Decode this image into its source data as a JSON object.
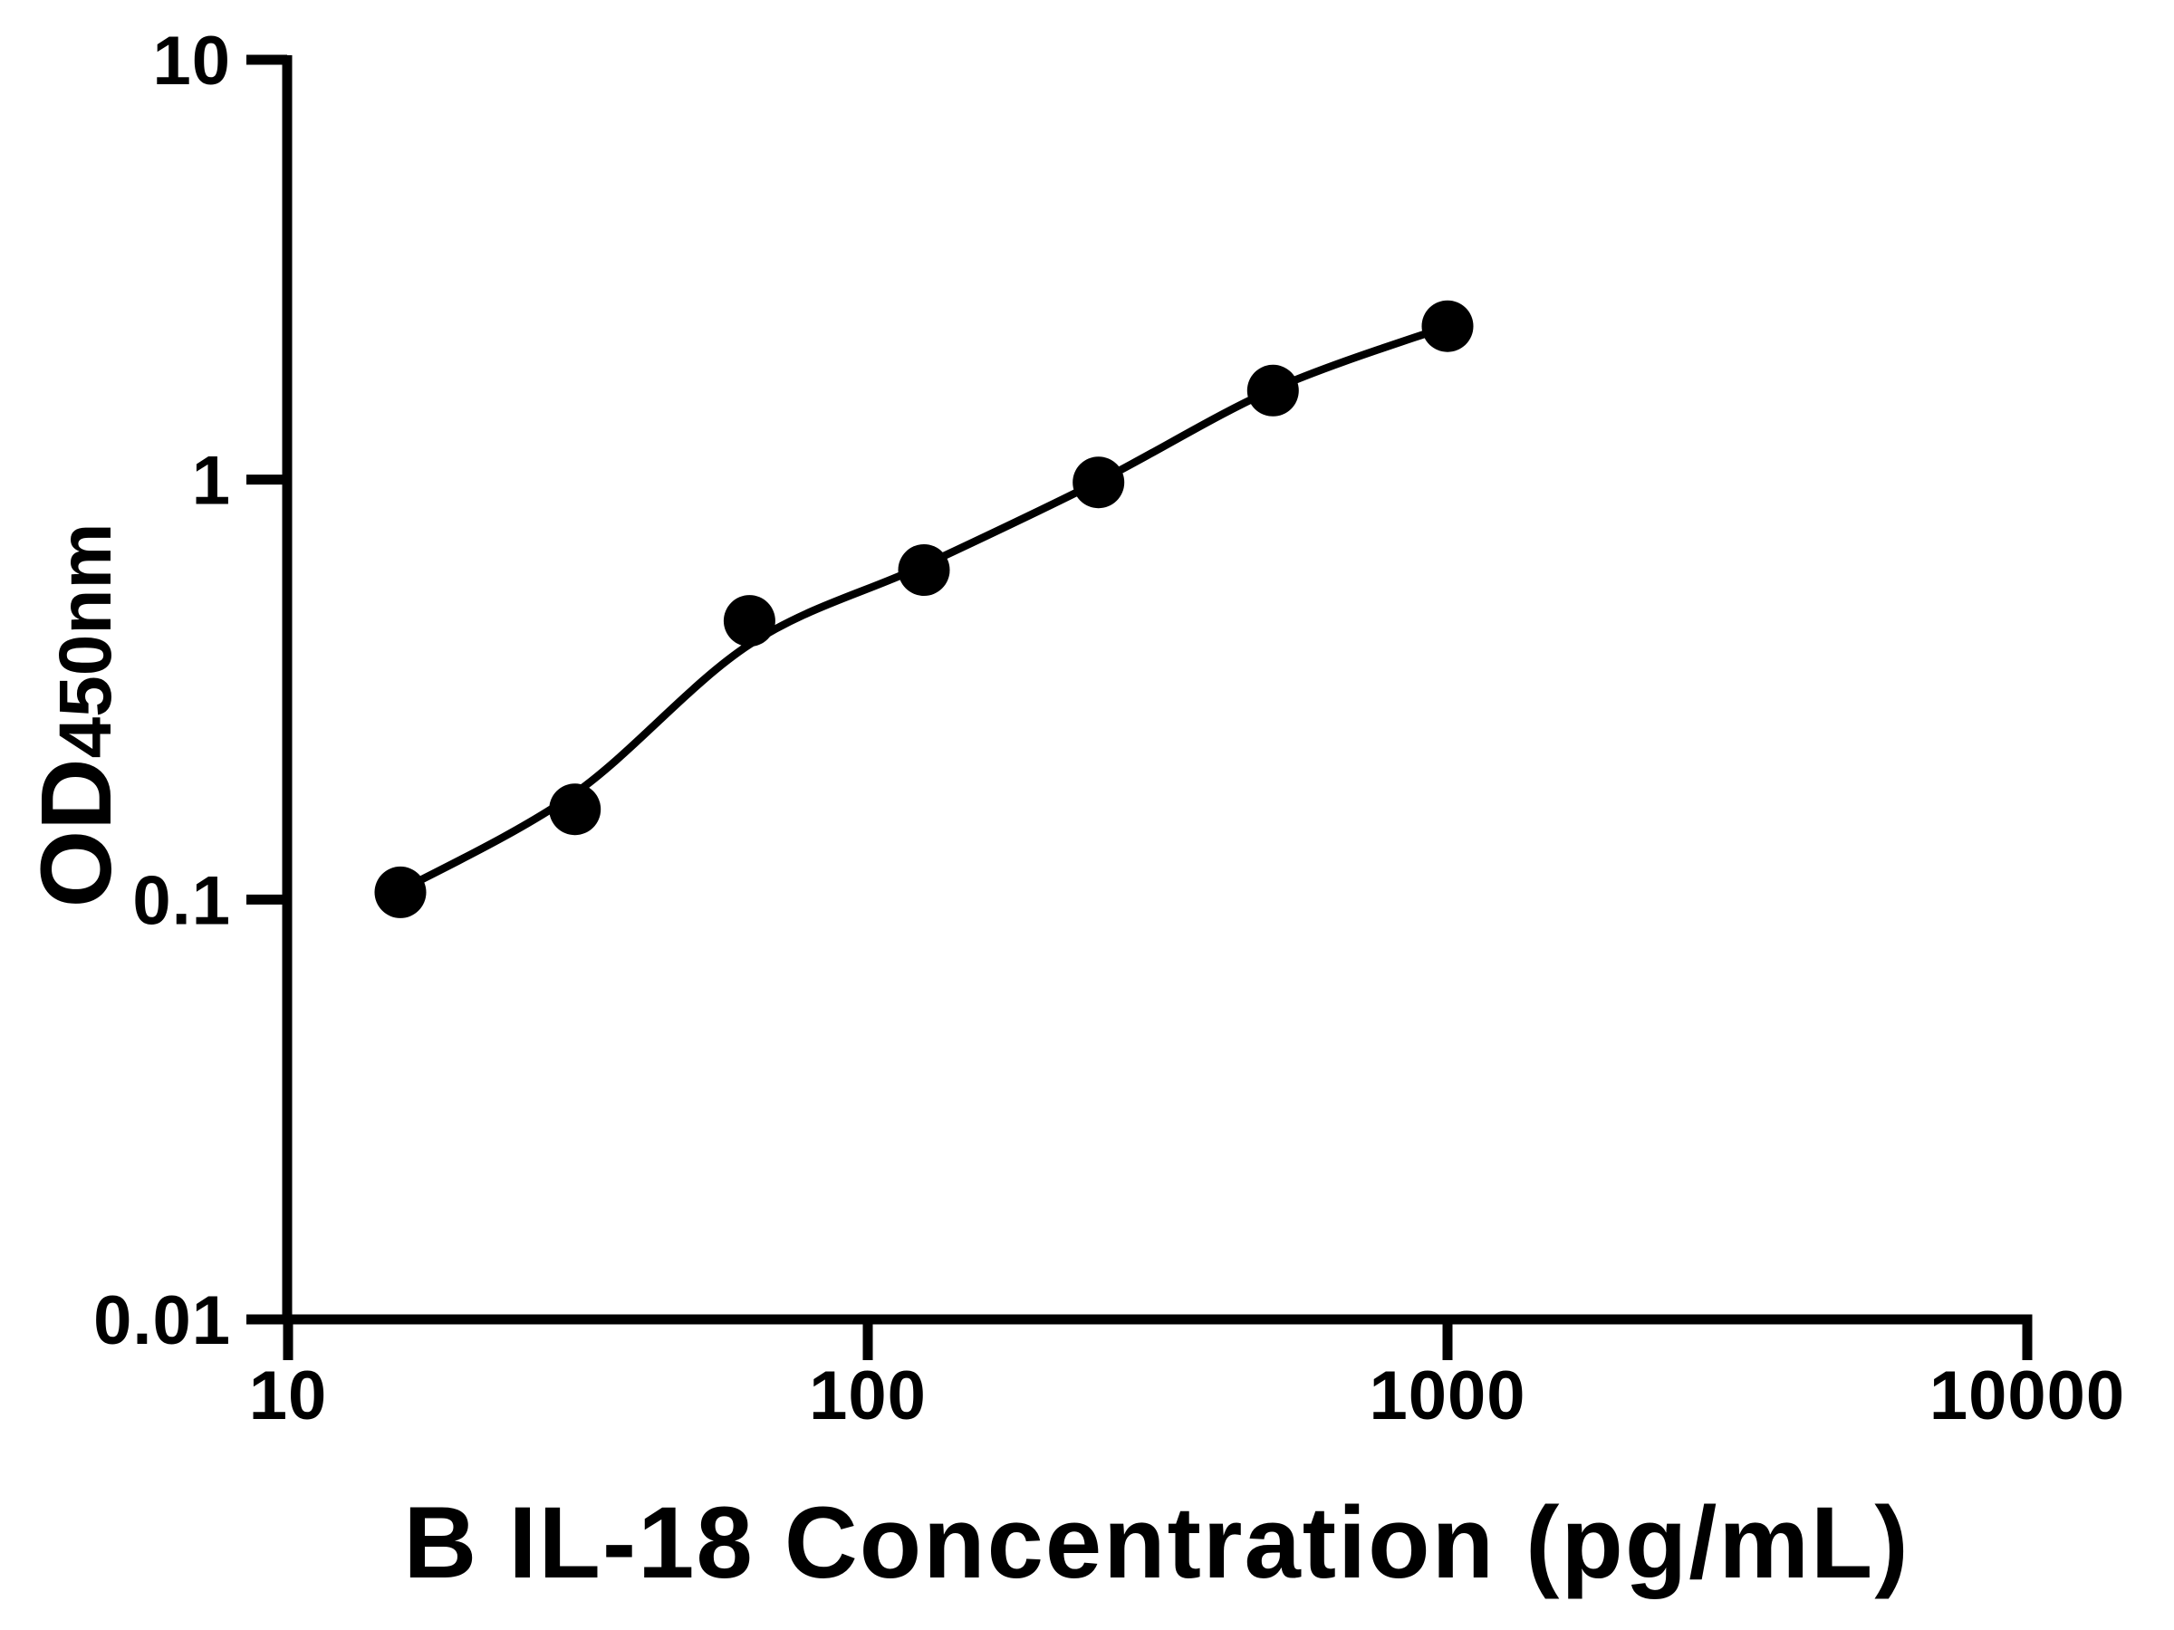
{
  "figure": {
    "background": "#ffffff",
    "ink_color": "#000000",
    "description": "ELISA standard curve, black scatter points with fitted line on log-log axes"
  },
  "chart_data": {
    "type": "scatter",
    "title": "",
    "xlabel": "B IL-18 Concentration (pg/mL)",
    "ylabel_main": "OD",
    "ylabel_sub": "450nm",
    "x_scale": "log10",
    "y_scale": "log10",
    "xlim": [
      10,
      10000
    ],
    "ylim": [
      0.01,
      10
    ],
    "grid": false,
    "legend": null,
    "x_ticks": [
      {
        "value": 10,
        "label": "10"
      },
      {
        "value": 100,
        "label": "100"
      },
      {
        "value": 1000,
        "label": "1000"
      },
      {
        "value": 10000,
        "label": "10000"
      }
    ],
    "y_ticks": [
      {
        "value": 10,
        "label": "10"
      },
      {
        "value": 1,
        "label": "1"
      },
      {
        "value": 0.1,
        "label": "0.1"
      },
      {
        "value": 0.01,
        "label": "0.01"
      }
    ],
    "series": [
      {
        "name": "standard-points",
        "kind": "scatter",
        "marker": "filled-circle",
        "color": "#000000",
        "points": [
          {
            "x": 15.625,
            "y": 0.104
          },
          {
            "x": 31.25,
            "y": 0.164
          },
          {
            "x": 62.5,
            "y": 0.461
          },
          {
            "x": 125,
            "y": 0.609
          },
          {
            "x": 250,
            "y": 0.985
          },
          {
            "x": 500,
            "y": 1.63
          },
          {
            "x": 1000,
            "y": 2.32
          }
        ]
      },
      {
        "name": "fit-curve",
        "kind": "line",
        "color": "#000000",
        "points": [
          {
            "x": 15.625,
            "y": 0.105
          },
          {
            "x": 31.25,
            "y": 0.179
          },
          {
            "x": 62.5,
            "y": 0.405
          },
          {
            "x": 125,
            "y": 0.625
          },
          {
            "x": 250,
            "y": 0.99
          },
          {
            "x": 500,
            "y": 1.64
          },
          {
            "x": 1000,
            "y": 2.32
          }
        ]
      }
    ]
  }
}
